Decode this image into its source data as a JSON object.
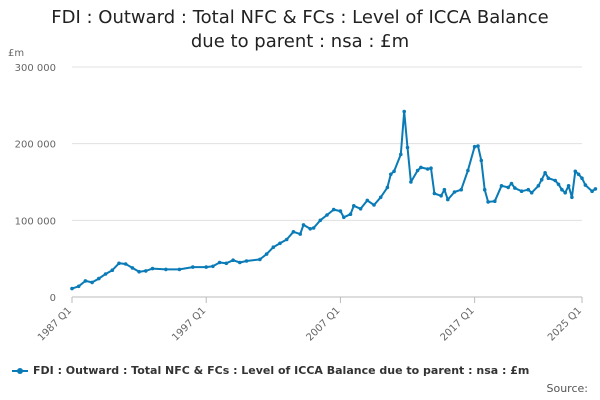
{
  "chart_data": {
    "type": "line",
    "title_lines": [
      "FDI : Outward : Total NFC & FCs : Level of ICCA Balance",
      "due to parent : nsa : £m"
    ],
    "ylabel": "£m",
    "ylim": [
      0,
      300000
    ],
    "yticks": [
      0,
      100000,
      200000,
      300000
    ],
    "ytick_labels": [
      "0",
      "100 000",
      "200 000",
      "300 000"
    ],
    "xlim": [
      1987.0,
      2025.0
    ],
    "xticks": [
      1987.0,
      1997.0,
      2007.0,
      2017.0,
      2025.0
    ],
    "xtick_labels": [
      "1987 Q1",
      "1997 Q1",
      "2007 Q1",
      "2017 Q1",
      "2025 Q1"
    ],
    "grid": true,
    "legend_position": "bottom-left",
    "series": [
      {
        "name": "FDI : Outward : Total NFC & FCs : Level of ICCA Balance due to parent : nsa : £m",
        "color": "#0a7bb6",
        "points": [
          [
            1987.0,
            11000
          ],
          [
            1987.5,
            14000
          ],
          [
            1988.0,
            21000
          ],
          [
            1988.5,
            19000
          ],
          [
            1989.0,
            24000
          ],
          [
            1989.5,
            30000
          ],
          [
            1990.0,
            35000
          ],
          [
            1990.5,
            44000
          ],
          [
            1991.0,
            43000
          ],
          [
            1991.5,
            38000
          ],
          [
            1992.0,
            33000
          ],
          [
            1992.5,
            34000
          ],
          [
            1993.0,
            37000
          ],
          [
            1994.0,
            36000
          ],
          [
            1995.0,
            36000
          ],
          [
            1996.0,
            39000
          ],
          [
            1997.0,
            39000
          ],
          [
            1997.5,
            40000
          ],
          [
            1998.0,
            45000
          ],
          [
            1998.5,
            44000
          ],
          [
            1999.0,
            48000
          ],
          [
            1999.5,
            45000
          ],
          [
            2000.0,
            47000
          ],
          [
            2001.0,
            49000
          ],
          [
            2001.5,
            56000
          ],
          [
            2002.0,
            65000
          ],
          [
            2002.5,
            70000
          ],
          [
            2003.0,
            75000
          ],
          [
            2003.5,
            85000
          ],
          [
            2004.0,
            82000
          ],
          [
            2004.25,
            94000
          ],
          [
            2004.75,
            89000
          ],
          [
            2005.0,
            90000
          ],
          [
            2005.5,
            100000
          ],
          [
            2006.0,
            107000
          ],
          [
            2006.5,
            114000
          ],
          [
            2007.0,
            112000
          ],
          [
            2007.25,
            104000
          ],
          [
            2007.75,
            108000
          ],
          [
            2008.0,
            119000
          ],
          [
            2008.5,
            115000
          ],
          [
            2009.0,
            126000
          ],
          [
            2009.5,
            120000
          ],
          [
            2010.0,
            130000
          ],
          [
            2010.5,
            143000
          ],
          [
            2010.75,
            160000
          ],
          [
            2011.0,
            164000
          ],
          [
            2011.5,
            186000
          ],
          [
            2011.75,
            242000
          ],
          [
            2012.0,
            195000
          ],
          [
            2012.25,
            150000
          ],
          [
            2012.75,
            165000
          ],
          [
            2013.0,
            169000
          ],
          [
            2013.5,
            167000
          ],
          [
            2013.75,
            168000
          ],
          [
            2014.0,
            135000
          ],
          [
            2014.5,
            132000
          ],
          [
            2014.75,
            140000
          ],
          [
            2015.0,
            127000
          ],
          [
            2015.5,
            137000
          ],
          [
            2016.0,
            140000
          ],
          [
            2016.5,
            165000
          ],
          [
            2017.0,
            196000
          ],
          [
            2017.25,
            197000
          ],
          [
            2017.5,
            178000
          ],
          [
            2017.75,
            140000
          ],
          [
            2018.0,
            124000
          ],
          [
            2018.5,
            125000
          ],
          [
            2019.0,
            145000
          ],
          [
            2019.5,
            143000
          ],
          [
            2019.75,
            148000
          ],
          [
            2020.0,
            142000
          ],
          [
            2020.5,
            138000
          ],
          [
            2021.0,
            140000
          ],
          [
            2021.25,
            136000
          ],
          [
            2021.75,
            145000
          ],
          [
            2022.0,
            153000
          ],
          [
            2022.25,
            162000
          ],
          [
            2022.5,
            155000
          ],
          [
            2023.0,
            152000
          ],
          [
            2023.25,
            147000
          ],
          [
            2023.5,
            140000
          ],
          [
            2023.75,
            136000
          ],
          [
            2024.0,
            145000
          ],
          [
            2024.25,
            130000
          ],
          [
            2024.5,
            164000
          ],
          [
            2024.75,
            160000
          ],
          [
            2025.0,
            155000
          ],
          [
            2025.25,
            146000
          ],
          [
            2025.75,
            138000
          ],
          [
            2026.0,
            141000
          ]
        ]
      }
    ],
    "source_label": "Source:"
  },
  "colors": {
    "series": "#0a7bb6",
    "grid": "#e0e0e0",
    "axis_text": "#666666"
  }
}
